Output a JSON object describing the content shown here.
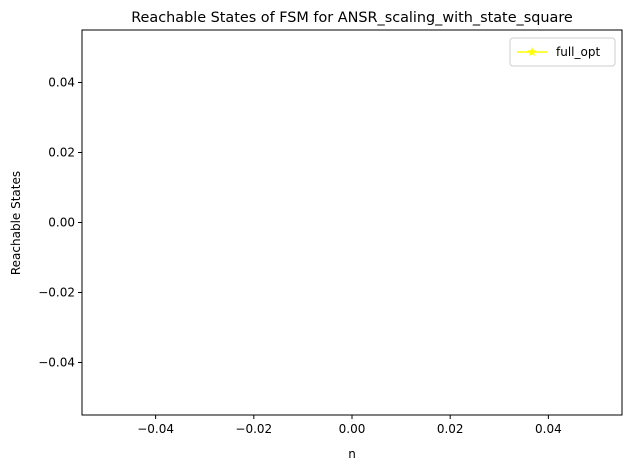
{
  "chart_data": {
    "type": "line",
    "title": "Reachable States of FSM for ANSR_scaling_with_state_square",
    "xlabel": "n",
    "ylabel": "Reachable States",
    "xlim": [
      -0.055,
      0.055
    ],
    "ylim": [
      -0.055,
      0.055
    ],
    "x_ticks": [
      -0.04,
      -0.02,
      0.0,
      0.02,
      0.04
    ],
    "x_tick_labels": [
      "−0.04",
      "−0.02",
      "0.00",
      "0.02",
      "0.04"
    ],
    "y_ticks": [
      -0.04,
      -0.02,
      0.0,
      0.02,
      0.04
    ],
    "y_tick_labels": [
      "−0.04",
      "−0.02",
      "0.00",
      "0.02",
      "0.04"
    ],
    "grid": false,
    "legend_position": "top-right",
    "series": [
      {
        "name": "full_opt",
        "color": "#ffff00",
        "marker": "star",
        "x": [],
        "y": []
      }
    ]
  }
}
